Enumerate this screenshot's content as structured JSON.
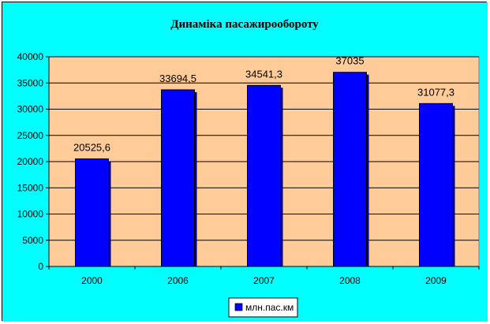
{
  "chart_data": {
    "type": "bar",
    "title": "Динаміка пасажирообороту",
    "categories": [
      "2000",
      "2006",
      "2007",
      "2008",
      "2009"
    ],
    "series": [
      {
        "name": "млн.пас.км",
        "values": [
          20525.6,
          33694.5,
          34541.3,
          37035,
          31077.3
        ],
        "labels": [
          "20525,6",
          "33694,5",
          "34541,3",
          "37035",
          "31077,3"
        ]
      }
    ],
    "ylim": [
      0,
      40000
    ],
    "yticks": [
      0,
      5000,
      10000,
      15000,
      20000,
      25000,
      30000,
      35000,
      40000
    ],
    "grid": true,
    "legend_position": "bottom",
    "colors": {
      "chart_background": "#00ffff",
      "plot_background": "#ffcc99",
      "bar_fill": "#0000ff",
      "bar_shadow": "#00008b",
      "gridline": "#000000"
    }
  }
}
